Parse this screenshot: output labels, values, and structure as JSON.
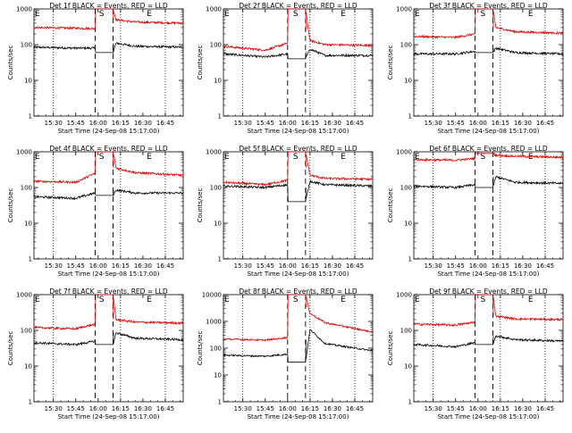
{
  "colors": {
    "events": "#000000",
    "lld": "#e00000",
    "axes": "#000000"
  },
  "chart_data": [
    {
      "type": "line",
      "title": "Det 1f BLACK = Events, RED = LLD",
      "xlabel": "Start Time (24-Sep-08 15:17:00)",
      "ylabel": "Counts/sec",
      "yscale": "log",
      "ylim": [
        1,
        1000
      ],
      "xlim": [
        "15:17",
        "16:57"
      ],
      "x_ticks": [
        "15:30",
        "15:45",
        "16:00",
        "16:15",
        "16:30",
        "16:45"
      ],
      "y_ticks": [
        "1",
        "10",
        "100",
        "1000"
      ],
      "markers": [
        {
          "label": "E",
          "time": "15:17"
        },
        {
          "label": "S",
          "time": "16:00"
        },
        {
          "label": "E",
          "time": "16:32"
        }
      ],
      "dotted_lines": [
        "15:30",
        "16:15",
        "16:45"
      ],
      "dashed_lines": [
        "15:58",
        "16:10"
      ],
      "gap": [
        "15:58",
        "16:10"
      ],
      "series": [
        {
          "name": "Events",
          "color": "#000000",
          "x": [
            "15:17",
            "15:45",
            "15:58",
            "16:10",
            "16:12",
            "16:25",
            "16:57"
          ],
          "y": [
            85,
            80,
            80,
            60,
            110,
            90,
            85
          ]
        },
        {
          "name": "LLD",
          "color": "#e00000",
          "x": [
            "15:17",
            "15:45",
            "15:58",
            "16:10",
            "16:12",
            "16:25",
            "16:57"
          ],
          "y": [
            300,
            290,
            280,
            1000,
            500,
            430,
            400
          ]
        }
      ]
    },
    {
      "type": "line",
      "title": "Det 2f BLACK = Events, RED = LLD",
      "xlabel": "Start Time (24-Sep-08 15:17:00)",
      "ylabel": "Counts/sec",
      "yscale": "log",
      "ylim": [
        1,
        1000
      ],
      "xlim": [
        "15:17",
        "16:57"
      ],
      "x_ticks": [
        "15:30",
        "15:45",
        "16:00",
        "16:15",
        "16:30",
        "16:45"
      ],
      "y_ticks": [
        "1",
        "10",
        "100",
        "1000"
      ],
      "markers": [
        {
          "label": "E",
          "time": "15:17"
        },
        {
          "label": "S",
          "time": "16:03"
        },
        {
          "label": "E",
          "time": "16:35"
        }
      ],
      "dotted_lines": [
        "15:30",
        "16:15",
        "16:45"
      ],
      "dashed_lines": [
        "16:00",
        "16:12"
      ],
      "gap": [
        "16:00",
        "16:12"
      ],
      "series": [
        {
          "name": "Events",
          "color": "#000000",
          "x": [
            "15:17",
            "15:45",
            "16:00",
            "16:12",
            "16:15",
            "16:25",
            "16:57"
          ],
          "y": [
            55,
            45,
            55,
            40,
            75,
            50,
            50
          ]
        },
        {
          "name": "LLD",
          "color": "#e00000",
          "x": [
            "15:17",
            "15:45",
            "16:00",
            "16:12",
            "16:15",
            "16:25",
            "16:57"
          ],
          "y": [
            90,
            70,
            110,
            1000,
            130,
            100,
            95
          ]
        }
      ]
    },
    {
      "type": "line",
      "title": "Det 3f BLACK = Events, RED = LLD",
      "xlabel": "Start Time (24-Sep-08 15:17:00)",
      "ylabel": "Counts/sec",
      "yscale": "log",
      "ylim": [
        1,
        1000
      ],
      "xlim": [
        "15:17",
        "16:57"
      ],
      "x_ticks": [
        "15:30",
        "15:45",
        "16:00",
        "16:15",
        "16:30",
        "16:45"
      ],
      "y_ticks": [
        "1",
        "10",
        "100",
        "1000"
      ],
      "markers": [
        {
          "label": "E",
          "time": "15:17"
        },
        {
          "label": "S",
          "time": "16:01"
        },
        {
          "label": "E",
          "time": "16:33"
        }
      ],
      "dotted_lines": [
        "15:30",
        "16:15",
        "16:45"
      ],
      "dashed_lines": [
        "15:58",
        "16:10"
      ],
      "gap": [
        "15:58",
        "16:10"
      ],
      "series": [
        {
          "name": "Events",
          "color": "#000000",
          "x": [
            "15:17",
            "15:45",
            "15:58",
            "16:10",
            "16:12",
            "16:25",
            "16:57"
          ],
          "y": [
            55,
            55,
            65,
            60,
            80,
            60,
            55
          ]
        },
        {
          "name": "LLD",
          "color": "#e00000",
          "x": [
            "15:17",
            "15:45",
            "15:58",
            "16:10",
            "16:12",
            "16:25",
            "16:57"
          ],
          "y": [
            170,
            160,
            200,
            1000,
            300,
            230,
            210
          ]
        }
      ]
    },
    {
      "type": "line",
      "title": "Det 4f BLACK = Events, RED = LLD",
      "xlabel": "Start Time (24-Sep-08 15:17:00)",
      "ylabel": "Counts/sec",
      "yscale": "log",
      "ylim": [
        1,
        1000
      ],
      "xlim": [
        "15:17",
        "16:57"
      ],
      "x_ticks": [
        "15:30",
        "15:45",
        "16:00",
        "16:15",
        "16:30",
        "16:45"
      ],
      "y_ticks": [
        "1",
        "10",
        "100",
        "1000"
      ],
      "markers": [
        {
          "label": "E",
          "time": "15:17"
        },
        {
          "label": "S",
          "time": "16:00"
        },
        {
          "label": "E",
          "time": "16:32"
        }
      ],
      "dotted_lines": [
        "15:30",
        "16:15",
        "16:45"
      ],
      "dashed_lines": [
        "15:58",
        "16:10"
      ],
      "gap": [
        "15:58",
        "16:10"
      ],
      "series": [
        {
          "name": "Events",
          "color": "#000000",
          "x": [
            "15:17",
            "15:45",
            "15:58",
            "16:10",
            "16:12",
            "16:25",
            "16:57"
          ],
          "y": [
            55,
            50,
            70,
            60,
            85,
            70,
            70
          ]
        },
        {
          "name": "LLD",
          "color": "#e00000",
          "x": [
            "15:17",
            "15:45",
            "15:58",
            "16:10",
            "16:12",
            "16:25",
            "16:57"
          ],
          "y": [
            150,
            140,
            250,
            1000,
            350,
            260,
            220
          ]
        }
      ]
    },
    {
      "type": "line",
      "title": "Det 5f BLACK = Events, RED = LLD",
      "xlabel": "Start Time (24-Sep-08 15:17:00)",
      "ylabel": "Counts/sec",
      "yscale": "log",
      "ylim": [
        1,
        1000
      ],
      "xlim": [
        "15:17",
        "16:57"
      ],
      "x_ticks": [
        "15:30",
        "15:45",
        "16:00",
        "16:15",
        "16:30",
        "16:45"
      ],
      "y_ticks": [
        "1",
        "10",
        "100",
        "1000"
      ],
      "markers": [
        {
          "label": "E",
          "time": "15:17"
        },
        {
          "label": "S",
          "time": "16:03"
        },
        {
          "label": "E",
          "time": "16:35"
        }
      ],
      "dotted_lines": [
        "15:30",
        "16:15",
        "16:45"
      ],
      "dashed_lines": [
        "16:00",
        "16:12"
      ],
      "gap": [
        "16:00",
        "16:12"
      ],
      "series": [
        {
          "name": "Events",
          "color": "#000000",
          "x": [
            "15:17",
            "15:45",
            "16:00",
            "16:12",
            "16:15",
            "16:25",
            "16:57"
          ],
          "y": [
            110,
            100,
            120,
            40,
            150,
            120,
            110
          ]
        },
        {
          "name": "LLD",
          "color": "#e00000",
          "x": [
            "15:17",
            "15:45",
            "16:00",
            "16:12",
            "16:15",
            "16:25",
            "16:57"
          ],
          "y": [
            140,
            120,
            160,
            1000,
            220,
            180,
            170
          ]
        }
      ]
    },
    {
      "type": "line",
      "title": "Det 6f BLACK = Events, RED = LLD",
      "xlabel": "Start Time (24-Sep-08 15:17:00)",
      "ylabel": "Counts/sec",
      "yscale": "log",
      "ylim": [
        1,
        1000
      ],
      "xlim": [
        "15:17",
        "16:57"
      ],
      "x_ticks": [
        "15:30",
        "15:45",
        "16:00",
        "16:15",
        "16:30",
        "16:45"
      ],
      "y_ticks": [
        "1",
        "10",
        "100",
        "1000"
      ],
      "markers": [
        {
          "label": "E",
          "time": "15:17"
        },
        {
          "label": "S",
          "time": "16:01"
        },
        {
          "label": "E",
          "time": "16:33"
        }
      ],
      "dotted_lines": [
        "15:30",
        "16:15",
        "16:45"
      ],
      "dashed_lines": [
        "15:58",
        "16:10"
      ],
      "gap": [
        "15:58",
        "16:10"
      ],
      "series": [
        {
          "name": "Events",
          "color": "#000000",
          "x": [
            "15:17",
            "15:45",
            "15:58",
            "16:10",
            "16:12",
            "16:25",
            "16:57"
          ],
          "y": [
            110,
            100,
            120,
            100,
            200,
            140,
            130
          ]
        },
        {
          "name": "LLD",
          "color": "#e00000",
          "x": [
            "15:17",
            "15:45",
            "15:58",
            "16:10",
            "16:12",
            "16:25",
            "16:57"
          ],
          "y": [
            600,
            580,
            650,
            900,
            800,
            750,
            700
          ]
        }
      ]
    },
    {
      "type": "line",
      "title": "Det 7f BLACK = Events, RED = LLD",
      "xlabel": "Start Time (24-Sep-08 15:17:00)",
      "ylabel": "Counts/sec",
      "yscale": "log",
      "ylim": [
        1,
        1000
      ],
      "xlim": [
        "15:17",
        "16:57"
      ],
      "x_ticks": [
        "15:30",
        "15:45",
        "16:00",
        "16:15",
        "16:30",
        "16:45"
      ],
      "y_ticks": [
        "1",
        "10",
        "100",
        "1000"
      ],
      "markers": [
        {
          "label": "E",
          "time": "15:17"
        },
        {
          "label": "S",
          "time": "16:00"
        },
        {
          "label": "E",
          "time": "16:32"
        }
      ],
      "dotted_lines": [
        "15:30",
        "16:15",
        "16:45"
      ],
      "dashed_lines": [
        "15:58",
        "16:10"
      ],
      "gap": [
        "15:58",
        "16:10"
      ],
      "series": [
        {
          "name": "Events",
          "color": "#000000",
          "x": [
            "15:17",
            "15:45",
            "15:58",
            "16:10",
            "16:12",
            "16:25",
            "16:57"
          ],
          "y": [
            45,
            40,
            50,
            40,
            85,
            60,
            55
          ]
        },
        {
          "name": "LLD",
          "color": "#e00000",
          "x": [
            "15:17",
            "15:45",
            "15:58",
            "16:10",
            "16:12",
            "16:25",
            "16:57"
          ],
          "y": [
            120,
            110,
            150,
            1000,
            200,
            170,
            160
          ]
        }
      ]
    },
    {
      "type": "line",
      "title": "Det 8f BLACK = Events, RED = LLD",
      "xlabel": "Start Time (24-Sep-08 15:17:00)",
      "ylabel": "Counts/sec",
      "yscale": "log",
      "ylim": [
        1,
        10000
      ],
      "xlim": [
        "15:17",
        "16:57"
      ],
      "x_ticks": [
        "15:30",
        "15:45",
        "16:00",
        "16:15",
        "16:30",
        "16:45"
      ],
      "y_ticks": [
        "1",
        "10",
        "100",
        "1000",
        "10000"
      ],
      "markers": [
        {
          "label": "E",
          "time": "15:17"
        },
        {
          "label": "S",
          "time": "16:03"
        },
        {
          "label": "E",
          "time": "16:35"
        }
      ],
      "dotted_lines": [
        "15:30",
        "16:15",
        "16:45"
      ],
      "dashed_lines": [
        "16:00",
        "16:12"
      ],
      "gap": [
        "16:00",
        "16:12"
      ],
      "series": [
        {
          "name": "Events",
          "color": "#000000",
          "x": [
            "15:17",
            "15:45",
            "16:00",
            "16:12",
            "16:15",
            "16:25",
            "16:57"
          ],
          "y": [
            55,
            50,
            60,
            30,
            500,
            150,
            80
          ]
        },
        {
          "name": "LLD",
          "color": "#e00000",
          "x": [
            "15:17",
            "15:45",
            "16:00",
            "16:12",
            "16:15",
            "16:25",
            "16:57"
          ],
          "y": [
            220,
            200,
            250,
            10000,
            2000,
            900,
            400
          ]
        }
      ]
    },
    {
      "type": "line",
      "title": "Det 9f BLACK = Events, RED = LLD",
      "xlabel": "Start Time (24-Sep-08 15:17:00)",
      "ylabel": "Counts/sec",
      "yscale": "log",
      "ylim": [
        1,
        1000
      ],
      "xlim": [
        "15:17",
        "16:57"
      ],
      "x_ticks": [
        "15:30",
        "15:45",
        "16:00",
        "16:15",
        "16:30",
        "16:45"
      ],
      "y_ticks": [
        "1",
        "10",
        "100",
        "1000"
      ],
      "markers": [
        {
          "label": "E",
          "time": "15:17"
        },
        {
          "label": "S",
          "time": "16:01"
        },
        {
          "label": "E",
          "time": "16:33"
        }
      ],
      "dotted_lines": [
        "15:30",
        "16:15",
        "16:45"
      ],
      "dashed_lines": [
        "15:58",
        "16:10"
      ],
      "gap": [
        "15:58",
        "16:10"
      ],
      "series": [
        {
          "name": "Events",
          "color": "#000000",
          "x": [
            "15:17",
            "15:45",
            "15:58",
            "16:10",
            "16:12",
            "16:25",
            "16:57"
          ],
          "y": [
            40,
            35,
            45,
            40,
            70,
            55,
            50
          ]
        },
        {
          "name": "LLD",
          "color": "#e00000",
          "x": [
            "15:17",
            "15:45",
            "15:58",
            "16:10",
            "16:12",
            "16:25",
            "16:57"
          ],
          "y": [
            150,
            140,
            170,
            1000,
            250,
            210,
            200
          ]
        }
      ]
    }
  ]
}
